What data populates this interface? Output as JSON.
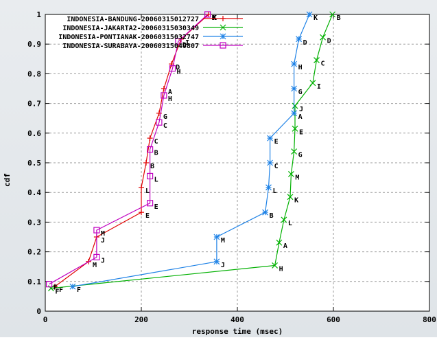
{
  "chart_data": {
    "type": "line",
    "xlabel": "response time (msec)",
    "ylabel": "cdf",
    "xlim": [
      0,
      800
    ],
    "ylim": [
      0,
      1
    ],
    "x_ticks": [
      0,
      200,
      400,
      600,
      800
    ],
    "x_tick_labels": [
      "0",
      "200",
      "400",
      "600",
      "800"
    ],
    "y_ticks": [
      0,
      0.1,
      0.2,
      0.3,
      0.4,
      0.5,
      0.6,
      0.7,
      0.8,
      0.9,
      1
    ],
    "y_tick_labels": [
      "0",
      "0.1",
      "0.2",
      "0.3",
      "0.4",
      "0.5",
      "0.6",
      "0.7",
      "0.8",
      "0.9",
      "1"
    ],
    "grid": true,
    "legend_position": "top-left",
    "series": [
      {
        "name": "INDONESIA-BANDUNG-20060315012727",
        "color": "#e00000",
        "marker": "plus",
        "points": [
          {
            "x": 20,
            "y": 0.083,
            "label": "F"
          },
          {
            "x": 90,
            "y": 0.167,
            "label": "M"
          },
          {
            "x": 107,
            "y": 0.25,
            "label": "J"
          },
          {
            "x": 200,
            "y": 0.333,
            "label": "E"
          },
          {
            "x": 200,
            "y": 0.417,
            "label": "L"
          },
          {
            "x": 210,
            "y": 0.5,
            "label": "B"
          },
          {
            "x": 218,
            "y": 0.583,
            "label": "C"
          },
          {
            "x": 237,
            "y": 0.667,
            "label": "G"
          },
          {
            "x": 247,
            "y": 0.75,
            "label": "A"
          },
          {
            "x": 263,
            "y": 0.833,
            "label": "D"
          },
          {
            "x": 283,
            "y": 0.917,
            "label": "I"
          },
          {
            "x": 340,
            "y": 1.0,
            "label": "K"
          }
        ]
      },
      {
        "name": "INDONESIA-JAKARTA2-20060315030349",
        "color": "#00b000",
        "marker": "cross",
        "points": [
          {
            "x": 12,
            "y": 0.077,
            "label": "F"
          },
          {
            "x": 478,
            "y": 0.154,
            "label": "H"
          },
          {
            "x": 487,
            "y": 0.231,
            "label": "A"
          },
          {
            "x": 497,
            "y": 0.308,
            "label": "L"
          },
          {
            "x": 510,
            "y": 0.385,
            "label": "K"
          },
          {
            "x": 512,
            "y": 0.462,
            "label": "M"
          },
          {
            "x": 518,
            "y": 0.538,
            "label": "G"
          },
          {
            "x": 520,
            "y": 0.615,
            "label": "E"
          },
          {
            "x": 520,
            "y": 0.692,
            "label": "J"
          },
          {
            "x": 557,
            "y": 0.769,
            "label": "I"
          },
          {
            "x": 565,
            "y": 0.846,
            "label": "C"
          },
          {
            "x": 578,
            "y": 0.923,
            "label": "D"
          },
          {
            "x": 598,
            "y": 1.0,
            "label": "B"
          }
        ]
      },
      {
        "name": "INDONESIA-PONTIANAK-20060315032747",
        "color": "#1e82e6",
        "marker": "star",
        "points": [
          {
            "x": 57,
            "y": 0.083,
            "label": "F"
          },
          {
            "x": 357,
            "y": 0.167,
            "label": "J"
          },
          {
            "x": 357,
            "y": 0.25,
            "label": "M"
          },
          {
            "x": 458,
            "y": 0.333,
            "label": "B"
          },
          {
            "x": 465,
            "y": 0.417,
            "label": "L"
          },
          {
            "x": 468,
            "y": 0.5,
            "label": "C"
          },
          {
            "x": 468,
            "y": 0.583,
            "label": "E"
          },
          {
            "x": 518,
            "y": 0.667,
            "label": "A"
          },
          {
            "x": 518,
            "y": 0.75,
            "label": "G"
          },
          {
            "x": 518,
            "y": 0.833,
            "label": "H"
          },
          {
            "x": 528,
            "y": 0.917,
            "label": "D"
          },
          {
            "x": 550,
            "y": 1.0,
            "label": "K"
          }
        ]
      },
      {
        "name": "INDONESIA-SURABAYA-20060315040807",
        "color": "#c000c0",
        "marker": "square",
        "points": [
          {
            "x": 8,
            "y": 0.091,
            "label": "F"
          },
          {
            "x": 107,
            "y": 0.182,
            "label": "J"
          },
          {
            "x": 107,
            "y": 0.273,
            "label": "M"
          },
          {
            "x": 218,
            "y": 0.364,
            "label": "E"
          },
          {
            "x": 218,
            "y": 0.455,
            "label": "L"
          },
          {
            "x": 218,
            "y": 0.545,
            "label": "B"
          },
          {
            "x": 237,
            "y": 0.636,
            "label": "C"
          },
          {
            "x": 247,
            "y": 0.727,
            "label": "H"
          },
          {
            "x": 265,
            "y": 0.818,
            "label": "H"
          },
          {
            "x": 277,
            "y": 0.909,
            "label": "D"
          },
          {
            "x": 338,
            "y": 1.0,
            "label": "K"
          }
        ]
      }
    ]
  }
}
